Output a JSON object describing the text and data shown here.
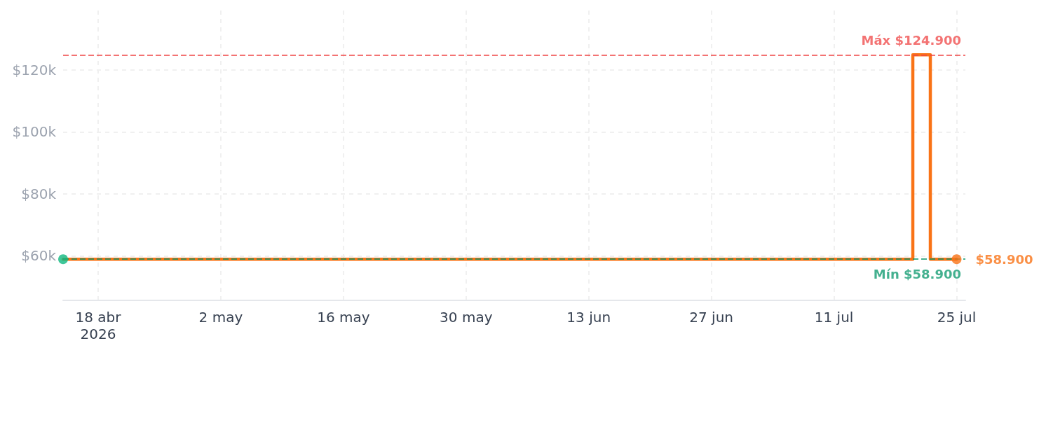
{
  "chart_data": {
    "type": "step",
    "x": [
      "2026-04-14",
      "2026-07-20",
      "2026-07-22",
      "2026-07-25"
    ],
    "series": [
      {
        "color": "#f97316",
        "values": [
          58900,
          124900,
          58900,
          58900
        ],
        "marker": "none"
      },
      {
        "type": "scatter",
        "color": "#10b981",
        "x": [
          "2026-04-14"
        ],
        "values": [
          58900
        ],
        "marker": "circle"
      },
      {
        "type": "scatter",
        "color": "#f97316",
        "x": [
          "2026-07-25"
        ],
        "values": [
          58900
        ],
        "marker": "circle",
        "value_labels": [
          "$58.900"
        ]
      }
    ],
    "xlim": [
      "2026-04-14",
      "2026-07-26"
    ],
    "xticks": [
      {
        "value": "2026-04-18",
        "label": "18 abr\n2026"
      },
      {
        "value": "2026-05-02",
        "label": "2 may"
      },
      {
        "value": "2026-05-16",
        "label": "16 may"
      },
      {
        "value": "2026-05-30",
        "label": "30 may"
      },
      {
        "value": "2026-06-13",
        "label": "13 jun"
      },
      {
        "value": "2026-06-27",
        "label": "27 jun"
      },
      {
        "value": "2026-07-11",
        "label": "11 jul"
      },
      {
        "value": "2026-07-25",
        "label": "25 jul"
      }
    ],
    "ylim": [
      45600,
      139200
    ],
    "yticks": [
      {
        "value": 60000,
        "label": "$60k"
      },
      {
        "value": 80000,
        "label": "$80k"
      },
      {
        "value": 100000,
        "label": "$100k"
      },
      {
        "value": 120000,
        "label": "$120k"
      }
    ],
    "ref_lines": [
      {
        "axis": "y",
        "value": 124900,
        "label": "Máx $124.900",
        "color": "#ef4444",
        "line_style": "dashed"
      },
      {
        "axis": "y",
        "value": 58900,
        "label": "Mín $58.900",
        "color": "#059669",
        "line_style": "dashed"
      }
    ],
    "grid": true,
    "line_style": "solid"
  }
}
